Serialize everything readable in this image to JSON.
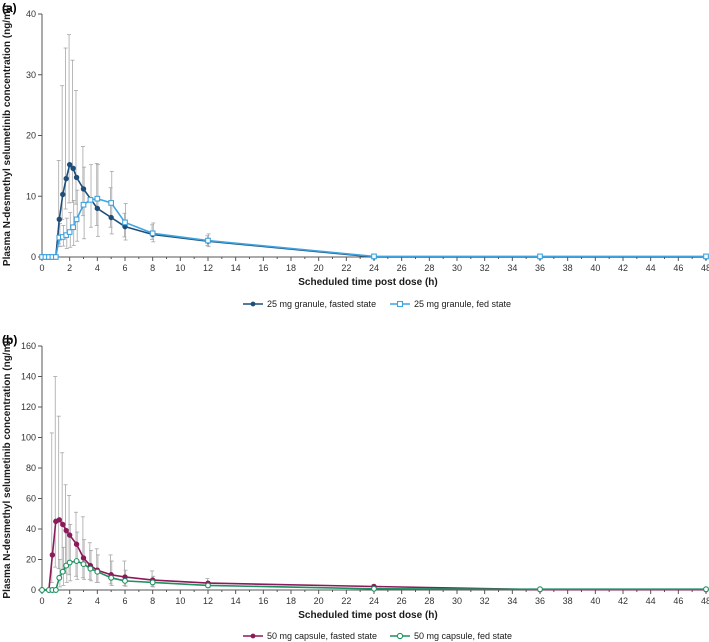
{
  "chart_data": [
    {
      "panel_label": "(a)",
      "type": "line",
      "xlabel": "Scheduled time post dose (h)",
      "ylabel": "Plasma N-desmethyl selumetinib concentration (ng/ml)",
      "xlim": [
        0,
        48
      ],
      "ylim": [
        0,
        40
      ],
      "xticks": [
        0,
        2,
        4,
        6,
        8,
        10,
        12,
        14,
        16,
        18,
        20,
        22,
        24,
        26,
        28,
        30,
        32,
        34,
        36,
        38,
        40,
        42,
        44,
        46,
        48
      ],
      "yticks": [
        0,
        10,
        20,
        30,
        40
      ],
      "grid": false,
      "legend_position": "bottom-center",
      "series": [
        {
          "name": "25 mg granule, fasted state",
          "color": "#1f4e79",
          "marker": "filled-circle",
          "x": [
            0,
            0.25,
            0.5,
            0.75,
            1,
            1.25,
            1.5,
            1.75,
            2,
            2.25,
            2.5,
            3,
            4,
            5,
            6,
            8,
            12,
            24,
            36,
            48
          ],
          "y": [
            0,
            0,
            0,
            0,
            0,
            6.2,
            10.3,
            12.9,
            15.2,
            14.6,
            13.1,
            11.2,
            8.0,
            6.5,
            5.0,
            3.7,
            2.6,
            0,
            0,
            0
          ],
          "err_low": [
            0,
            0,
            0,
            0,
            0,
            2.2,
            6.2,
            7.9,
            8.9,
            9.0,
            8.7,
            6.8,
            5.2,
            4.9,
            3.3,
            2.9,
            1.9,
            0,
            0,
            0
          ],
          "err_high": [
            0,
            0,
            0,
            0,
            0,
            15.9,
            28.2,
            34.4,
            36.6,
            32.4,
            27.4,
            18.2,
            15.4,
            11.4,
            7.2,
            5.3,
            3.5,
            0,
            0,
            0
          ]
        },
        {
          "name": "25 mg granule, fed state",
          "color": "#3fa3e0",
          "marker": "open-square",
          "x": [
            0,
            0.25,
            0.5,
            0.75,
            1,
            1.25,
            1.5,
            1.75,
            2,
            2.25,
            2.5,
            3,
            3.5,
            4,
            5,
            6,
            8,
            12,
            24,
            36,
            48
          ],
          "y": [
            0,
            0,
            0,
            0,
            0,
            3.2,
            3.3,
            3.6,
            4.1,
            4.9,
            6.2,
            8.6,
            9.4,
            9.6,
            8.9,
            5.7,
            3.9,
            2.7,
            0.1,
            0.1,
            0.1
          ],
          "err_low": [
            0,
            0,
            0,
            0,
            0,
            1.7,
            1.8,
            1.4,
            1.6,
            1.9,
            2.6,
            3.0,
            4.9,
            3.4,
            3.8,
            2.8,
            2.5,
            1.7,
            0,
            0,
            0
          ],
          "err_high": [
            0,
            0,
            0,
            0,
            0,
            5.5,
            5.2,
            6.4,
            7.3,
            9.3,
            11.0,
            14.8,
            15.2,
            15.2,
            14.1,
            8.8,
            5.6,
            3.8,
            0.2,
            0.2,
            0.2
          ]
        }
      ]
    },
    {
      "panel_label": "(b)",
      "type": "line",
      "xlabel": "Scheduled time post dose (h)",
      "ylabel": "Plasma N-desmethyl selumetinib concentration (ng/ml)",
      "xlim": [
        0,
        48
      ],
      "ylim": [
        0,
        160
      ],
      "xticks": [
        0,
        2,
        4,
        6,
        8,
        10,
        12,
        14,
        16,
        18,
        20,
        22,
        24,
        26,
        28,
        30,
        32,
        34,
        36,
        38,
        40,
        42,
        44,
        46,
        48
      ],
      "yticks": [
        0,
        20,
        40,
        60,
        80,
        100,
        120,
        140,
        160
      ],
      "grid": false,
      "legend_position": "bottom-center",
      "series": [
        {
          "name": "50 mg capsule, fasted state",
          "color": "#8b1a5a",
          "marker": "filled-circle",
          "x": [
            0,
            0.5,
            0.75,
            1,
            1.25,
            1.5,
            1.75,
            2,
            2.5,
            3,
            3.5,
            4,
            5,
            6,
            8,
            12,
            24,
            36,
            48
          ],
          "y": [
            0,
            0,
            23,
            45,
            46,
            43,
            39,
            36,
            30,
            21,
            16,
            13,
            10,
            8.5,
            6.5,
            4.5,
            2.3,
            0.2,
            0.2
          ],
          "err_low": [
            0,
            0,
            5,
            15,
            14,
            12,
            11,
            10,
            9,
            8,
            7,
            5,
            4,
            3,
            2.5,
            2,
            0.8,
            0,
            0
          ],
          "err_high": [
            0,
            0,
            103,
            140,
            114,
            90,
            69,
            62,
            51,
            48,
            31,
            27,
            23,
            19,
            12.5,
            7.5,
            3.5,
            0.5,
            0.5
          ]
        },
        {
          "name": "50 mg capsule, fed state",
          "color": "#1e9160",
          "marker": "open-circle",
          "x": [
            0,
            0.5,
            0.75,
            1,
            1.25,
            1.5,
            1.75,
            2,
            2.5,
            3,
            3.5,
            4,
            5,
            6,
            8,
            12,
            24,
            36,
            48
          ],
          "y": [
            0,
            0,
            0,
            0,
            8,
            12,
            16,
            18,
            19,
            17,
            14,
            12,
            8,
            6,
            5,
            3,
            0.8,
            0.5,
            0.5
          ],
          "err_low": [
            0,
            0,
            0,
            0,
            2,
            3,
            5,
            6,
            7,
            7,
            6,
            5,
            3,
            2.5,
            2,
            1.5,
            0,
            0,
            0
          ],
          "err_high": [
            0,
            0,
            0,
            0,
            20,
            28,
            37,
            43,
            38,
            33,
            26,
            23,
            19,
            13,
            9,
            5,
            2,
            1.5,
            1.5
          ]
        }
      ]
    }
  ]
}
